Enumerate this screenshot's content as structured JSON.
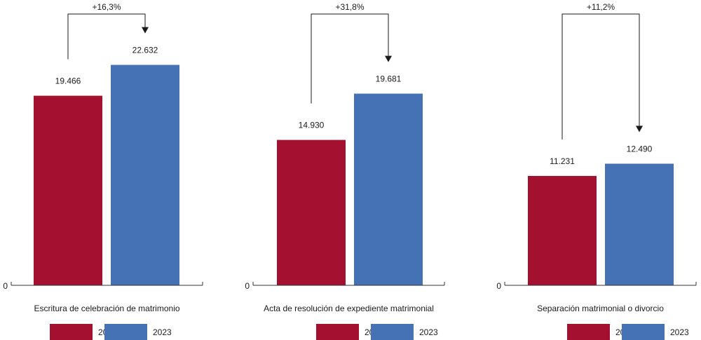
{
  "colors": {
    "2022": "#a31030",
    "2023": "#4472b4",
    "axis": "#333333"
  },
  "chart_data": [
    {
      "type": "bar",
      "xlabel": "Escritura de celebración de matrimonio",
      "ylim": [
        0,
        28000
      ],
      "zero_label": "0",
      "series": [
        {
          "name": "2022",
          "values": [
            19466
          ],
          "label": "19.466"
        },
        {
          "name": "2023",
          "values": [
            22632
          ],
          "label": "22.632"
        }
      ],
      "change_label": "+16,3%"
    },
    {
      "type": "bar",
      "xlabel": "Acta de resolución de expediente matrimonial",
      "ylim": [
        0,
        28000
      ],
      "zero_label": "0",
      "series": [
        {
          "name": "2022",
          "values": [
            14930
          ],
          "label": "14.930"
        },
        {
          "name": "2023",
          "values": [
            19681
          ],
          "label": "19.681"
        }
      ],
      "change_label": "+31,8%"
    },
    {
      "type": "bar",
      "xlabel": "Separación matrimonial o divorcio",
      "ylim": [
        0,
        28000
      ],
      "zero_label": "0",
      "series": [
        {
          "name": "2022",
          "values": [
            11231
          ],
          "label": "11.231"
        },
        {
          "name": "2023",
          "values": [
            12490
          ],
          "label": "12.490"
        }
      ],
      "change_label": "+11,2%"
    }
  ]
}
